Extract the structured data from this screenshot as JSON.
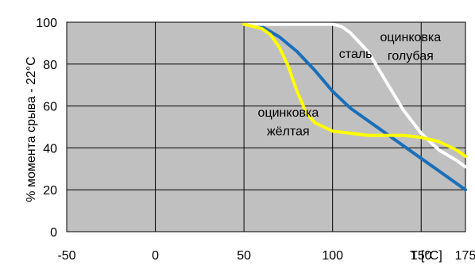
{
  "chart_data": {
    "type": "line",
    "title": "",
    "xlabel": "T [°C]",
    "ylabel": "% момента срыва - 22°C",
    "xlim": [
      -50,
      175
    ],
    "ylim": [
      0,
      100
    ],
    "xticks": [
      -50,
      0,
      50,
      100,
      150,
      175
    ],
    "yticks": [
      0,
      20,
      40,
      60,
      80,
      100
    ],
    "grid": true,
    "plot_background": "#c0c0c0",
    "series": [
      {
        "name": "сталь",
        "color": "#1a6fb8",
        "x": [
          50,
          60,
          70,
          80,
          90,
          100,
          110,
          120,
          130,
          140,
          150,
          160,
          170,
          175
        ],
        "y": [
          99,
          98,
          93,
          86,
          77,
          67,
          59,
          53,
          47,
          41,
          35,
          29,
          23,
          20
        ]
      },
      {
        "name": "оцинковка голубая",
        "color": "#ffffff",
        "x": [
          50,
          90,
          100,
          105,
          110,
          120,
          130,
          140,
          150,
          160,
          170,
          175
        ],
        "y": [
          99,
          99,
          99,
          98,
          95,
          86,
          72,
          58,
          47,
          39,
          34,
          31
        ]
      },
      {
        "name": "оцинковка жёлтая",
        "color": "#ffff00",
        "x": [
          50,
          60,
          65,
          70,
          75,
          80,
          85,
          90,
          100,
          110,
          120,
          130,
          140,
          150,
          160,
          170,
          175
        ],
        "y": [
          99,
          97,
          94,
          88,
          79,
          67,
          57,
          52,
          48,
          47,
          46,
          46,
          46,
          45,
          43,
          39,
          36
        ]
      }
    ],
    "annotations": [
      {
        "text": "сталь",
        "x": 113,
        "y": 83
      },
      {
        "text": "оцинковка",
        "x": 144,
        "y": 91
      },
      {
        "text": "голубая",
        "x": 144,
        "y": 82
      },
      {
        "text": "оцинковка",
        "x": 75,
        "y": 55
      },
      {
        "text": "жёлтая",
        "x": 75,
        "y": 46
      }
    ]
  }
}
